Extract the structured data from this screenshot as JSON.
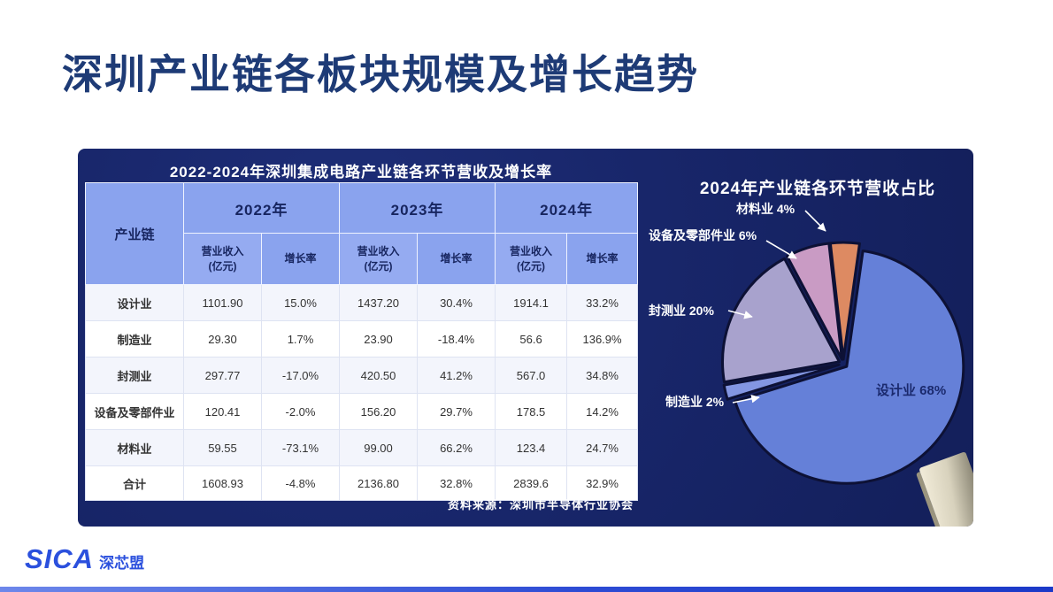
{
  "page": {
    "title": "深圳产业链各板块规模及增长趋势"
  },
  "logo": {
    "brand": "SICA",
    "name": "深芯盟"
  },
  "table": {
    "title": "2022-2024年深圳集成电路产业链各环节营收及增长率",
    "chain_header": "产业链",
    "years": [
      "2022年",
      "2023年",
      "2024年"
    ],
    "sub_revenue": "营业收入\n(亿元)",
    "sub_growth": "增长率",
    "source": "资料来源：深圳市半导体行业协会"
  },
  "pie": {
    "title": "2024年产业链各环节营收占比",
    "callouts": {
      "material": "材料业 4%",
      "equipment": "设备及零部件业 6%",
      "packaging": "封测业 20%",
      "manufacturing": "制造业 2%",
      "design": "设计业 68%"
    }
  },
  "chart_data": [
    {
      "type": "table",
      "title": "2022-2024年深圳集成电路产业链各环节营收及增长率",
      "columns": [
        "产业链",
        "2022年 营业收入(亿元)",
        "2022年 增长率",
        "2023年 营业收入(亿元)",
        "2023年 增长率",
        "2024年 营业收入(亿元)",
        "2024年 增长率"
      ],
      "rows": [
        [
          "设计业",
          "1101.90",
          "15.0%",
          "1437.20",
          "30.4%",
          "1914.1",
          "33.2%"
        ],
        [
          "制造业",
          "29.30",
          "1.7%",
          "23.90",
          "-18.4%",
          "56.6",
          "136.9%"
        ],
        [
          "封测业",
          "297.77",
          "-17.0%",
          "420.50",
          "41.2%",
          "567.0",
          "34.8%"
        ],
        [
          "设备及零部件业",
          "120.41",
          "-2.0%",
          "156.20",
          "29.7%",
          "178.5",
          "14.2%"
        ],
        [
          "材料业",
          "59.55",
          "-73.1%",
          "99.00",
          "66.2%",
          "123.4",
          "24.7%"
        ],
        [
          "合计",
          "1608.93",
          "-4.8%",
          "2136.80",
          "32.8%",
          "2839.6",
          "32.9%"
        ]
      ],
      "source": "资料来源：深圳市半导体行业协会"
    },
    {
      "type": "pie",
      "title": "2024年产业链各环节营收占比",
      "labels": [
        "设计业",
        "制造业",
        "封测业",
        "设备及零部件业",
        "材料业"
      ],
      "values": [
        68,
        2,
        20,
        6,
        4
      ],
      "colors": [
        "#6580d8",
        "#8396e2",
        "#a8a2cd",
        "#c99bc4",
        "#dd8a62"
      ],
      "stroke_color": "#0d1135",
      "start_angle_deg": 8,
      "direction": "clockwise",
      "legend_position": "callout-labels"
    }
  ]
}
